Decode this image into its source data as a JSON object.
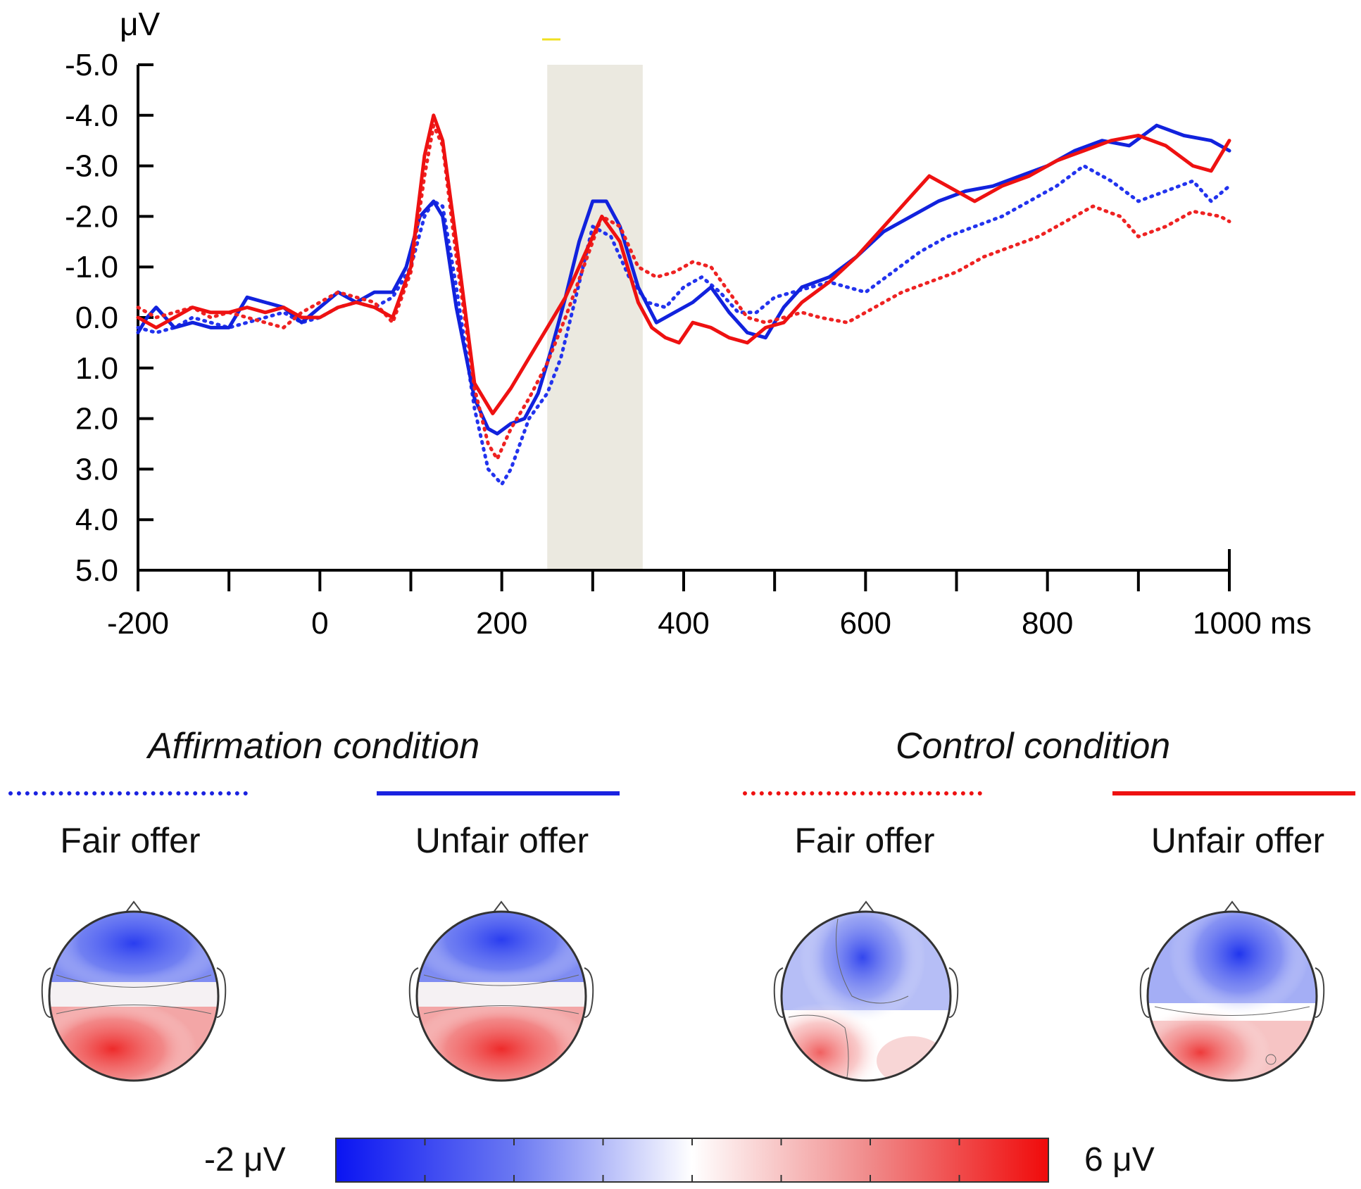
{
  "chart_data": {
    "type": "line",
    "title": "",
    "xlabel": "ms",
    "ylabel": "μV",
    "x_tick_labels": [
      "-200",
      "0",
      "200",
      "400",
      "600",
      "800",
      "1000 ms"
    ],
    "x_ticks": [
      -200,
      0,
      200,
      400,
      600,
      800,
      1000
    ],
    "y_tick_labels": [
      "-5.0",
      "-4.0",
      "-3.0",
      "-2.0",
      "-1.0",
      "0.0",
      "1.0",
      "2.0",
      "3.0",
      "4.0",
      "5.0"
    ],
    "y_ticks": [
      -5,
      -4,
      -3,
      -2,
      -1,
      0,
      1,
      2,
      3,
      4,
      5
    ],
    "xlim": [
      -200,
      1000
    ],
    "ylim": [
      -5,
      5
    ],
    "y_inverted": true,
    "highlight_window": [
      250,
      355
    ],
    "series": [
      {
        "name": "Affirmation condition – Fair offer",
        "color": "#2233ee",
        "style": "dotted",
        "x": [
          -200,
          -180,
          -160,
          -140,
          -120,
          -100,
          -80,
          -60,
          -40,
          -20,
          0,
          20,
          40,
          60,
          80,
          100,
          115,
          125,
          135,
          150,
          170,
          185,
          200,
          210,
          230,
          250,
          265,
          280,
          300,
          320,
          340,
          360,
          380,
          400,
          420,
          440,
          460,
          480,
          500,
          520,
          540,
          560,
          580,
          600,
          630,
          660,
          690,
          720,
          750,
          780,
          810,
          840,
          870,
          900,
          930,
          960,
          980,
          1000
        ],
        "y": [
          0.2,
          0.3,
          0.2,
          0.0,
          0.1,
          0.2,
          0.1,
          0.0,
          -0.1,
          0.1,
          0.0,
          -0.2,
          -0.3,
          -0.2,
          -0.4,
          -1.0,
          -2.0,
          -2.3,
          -2.2,
          -0.6,
          1.8,
          3.0,
          3.3,
          3.0,
          2.0,
          1.5,
          0.8,
          -0.3,
          -1.8,
          -1.6,
          -0.8,
          -0.3,
          -0.2,
          -0.6,
          -0.8,
          -0.5,
          -0.1,
          -0.1,
          -0.4,
          -0.5,
          -0.6,
          -0.7,
          -0.6,
          -0.5,
          -0.9,
          -1.3,
          -1.6,
          -1.8,
          -2.0,
          -2.3,
          -2.6,
          -3.0,
          -2.7,
          -2.3,
          -2.5,
          -2.7,
          -2.3,
          -2.6
        ]
      },
      {
        "name": "Affirmation condition – Unfair offer",
        "color": "#1122dd",
        "style": "solid",
        "x": [
          -200,
          -190,
          -180,
          -160,
          -140,
          -120,
          -100,
          -80,
          -60,
          -40,
          -20,
          0,
          20,
          40,
          60,
          80,
          95,
          110,
          125,
          135,
          150,
          170,
          185,
          195,
          210,
          225,
          240,
          255,
          270,
          285,
          300,
          315,
          330,
          350,
          370,
          390,
          410,
          430,
          450,
          470,
          490,
          510,
          530,
          560,
          590,
          620,
          650,
          680,
          710,
          740,
          770,
          800,
          830,
          860,
          890,
          920,
          950,
          980,
          1000
        ],
        "y": [
          0.3,
          0.0,
          -0.2,
          0.2,
          0.1,
          0.2,
          0.2,
          -0.4,
          -0.3,
          -0.2,
          0.1,
          -0.2,
          -0.5,
          -0.3,
          -0.5,
          -0.5,
          -1.0,
          -2.0,
          -2.3,
          -2.0,
          -0.2,
          1.6,
          2.2,
          2.3,
          2.1,
          2.0,
          1.5,
          0.6,
          -0.4,
          -1.5,
          -2.3,
          -2.3,
          -1.8,
          -0.6,
          0.1,
          -0.1,
          -0.3,
          -0.6,
          -0.1,
          0.3,
          0.4,
          -0.2,
          -0.6,
          -0.8,
          -1.2,
          -1.7,
          -2.0,
          -2.3,
          -2.5,
          -2.6,
          -2.8,
          -3.0,
          -3.3,
          -3.5,
          -3.4,
          -3.8,
          -3.6,
          -3.5,
          -3.3
        ]
      },
      {
        "name": "Control condition – Fair offer",
        "color": "#ee2222",
        "style": "dotted",
        "x": [
          -200,
          -180,
          -160,
          -140,
          -120,
          -100,
          -80,
          -60,
          -40,
          -20,
          0,
          20,
          40,
          60,
          80,
          100,
          115,
          125,
          135,
          150,
          170,
          185,
          195,
          210,
          230,
          250,
          270,
          290,
          310,
          330,
          350,
          370,
          390,
          410,
          430,
          450,
          470,
          490,
          510,
          530,
          550,
          580,
          610,
          640,
          670,
          700,
          730,
          760,
          790,
          820,
          850,
          880,
          900,
          930,
          960,
          990,
          1000
        ],
        "y": [
          -0.2,
          0.0,
          -0.1,
          -0.2,
          0.0,
          -0.1,
          0.0,
          0.1,
          0.2,
          -0.1,
          -0.3,
          -0.5,
          -0.4,
          -0.3,
          0.1,
          -0.9,
          -2.8,
          -3.8,
          -3.4,
          -1.2,
          1.4,
          2.5,
          2.8,
          2.2,
          1.6,
          0.9,
          0.0,
          -1.0,
          -2.0,
          -1.8,
          -1.0,
          -0.8,
          -0.9,
          -1.1,
          -1.0,
          -0.5,
          0.0,
          0.1,
          0.0,
          -0.1,
          0.0,
          0.1,
          -0.2,
          -0.5,
          -0.7,
          -0.9,
          -1.2,
          -1.4,
          -1.6,
          -1.9,
          -2.2,
          -2.0,
          -1.6,
          -1.8,
          -2.1,
          -2.0,
          -1.9
        ]
      },
      {
        "name": "Control condition – Unfair offer",
        "color": "#ee1111",
        "style": "solid",
        "x": [
          -200,
          -180,
          -160,
          -140,
          -120,
          -100,
          -80,
          -60,
          -40,
          -20,
          0,
          20,
          40,
          60,
          80,
          100,
          115,
          125,
          135,
          150,
          170,
          190,
          210,
          230,
          250,
          270,
          290,
          310,
          330,
          350,
          365,
          380,
          395,
          410,
          430,
          450,
          470,
          490,
          510,
          530,
          560,
          590,
          620,
          650,
          670,
          690,
          720,
          750,
          780,
          810,
          840,
          870,
          900,
          930,
          960,
          980,
          1000
        ],
        "y": [
          0.0,
          0.2,
          0.0,
          -0.2,
          -0.1,
          -0.1,
          -0.2,
          -0.1,
          -0.2,
          0.0,
          0.0,
          -0.2,
          -0.3,
          -0.2,
          0.0,
          -1.0,
          -3.2,
          -4.0,
          -3.5,
          -1.5,
          1.3,
          1.9,
          1.4,
          0.8,
          0.2,
          -0.4,
          -1.2,
          -2.0,
          -1.5,
          -0.3,
          0.2,
          0.4,
          0.5,
          0.1,
          0.2,
          0.4,
          0.5,
          0.2,
          0.1,
          -0.3,
          -0.7,
          -1.2,
          -1.8,
          -2.4,
          -2.8,
          -2.6,
          -2.3,
          -2.6,
          -2.8,
          -3.1,
          -3.3,
          -3.5,
          -3.6,
          -3.4,
          -3.0,
          -2.9,
          -3.5
        ]
      }
    ]
  },
  "conditions": [
    {
      "title": "Affirmation condition",
      "offers": [
        "Fair offer",
        "Unfair offer"
      ]
    },
    {
      "title": "Control condition",
      "offers": [
        "Fair offer",
        "Unfair offer"
      ]
    }
  ],
  "legend_colors": {
    "affirmation": "#1a22e0",
    "control": "#ee1111"
  },
  "colorbar": {
    "min_label": "-2 μV",
    "max_label": "6 μV",
    "min": -2,
    "max": 6
  }
}
